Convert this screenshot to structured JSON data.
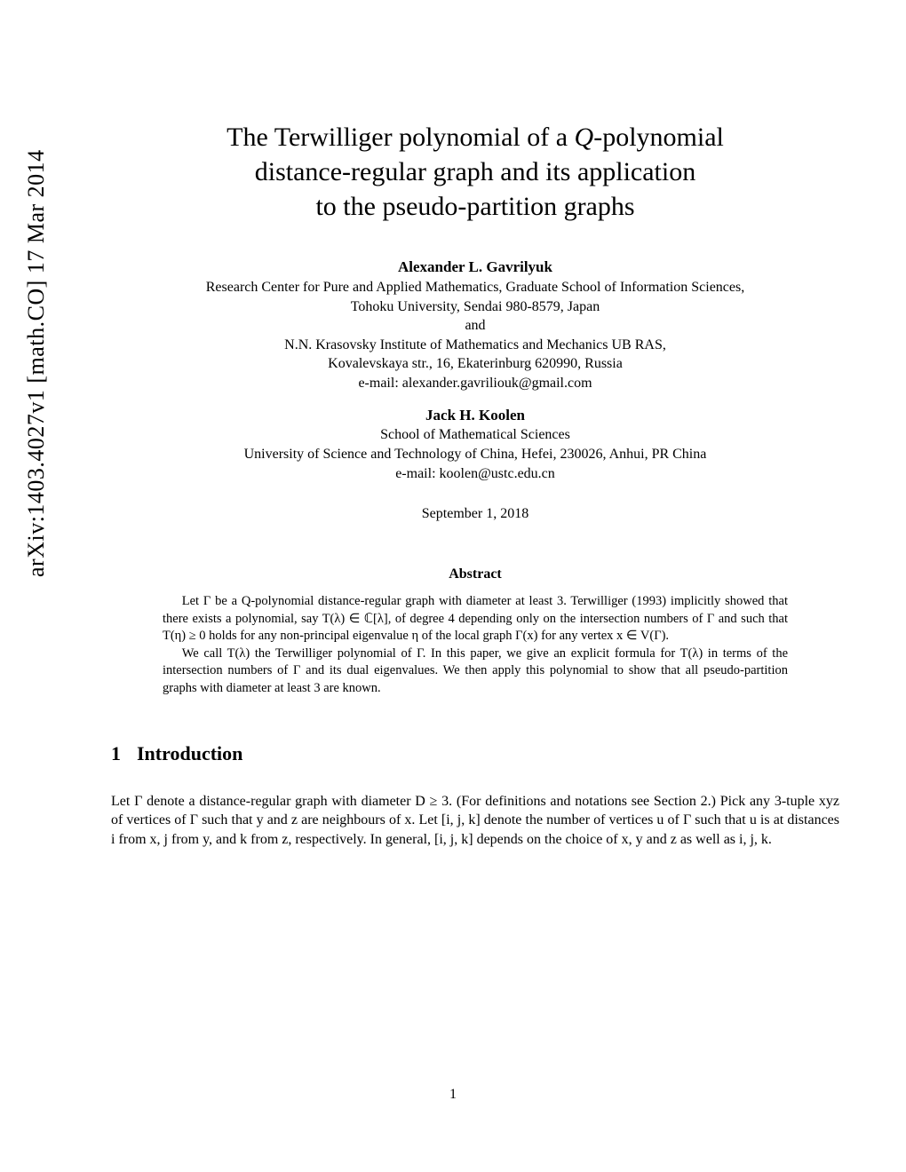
{
  "arxiv_id": "arXiv:1403.4027v1  [math.CO]  17 Mar 2014",
  "title_line1": "The Terwilliger polynomial of a ",
  "title_q": "Q",
  "title_line1b": "-polynomial",
  "title_line2": "distance-regular graph and its application",
  "title_line3": "to the pseudo-partition graphs",
  "author1": {
    "name": "Alexander L. Gavrilyuk",
    "affil1": "Research Center for Pure and Applied Mathematics, Graduate School of Information Sciences,",
    "affil2": "Tohoku University, Sendai 980-8579, Japan",
    "and": "and",
    "affil3": "N.N. Krasovsky Institute of Mathematics and Mechanics UB RAS,",
    "affil4": "Kovalevskaya str., 16, Ekaterinburg 620990, Russia",
    "email": "e-mail: alexander.gavriliouk@gmail.com"
  },
  "author2": {
    "name": "Jack H. Koolen",
    "affil1": "School of Mathematical Sciences",
    "affil2": "University of Science and Technology of China, Hefei, 230026, Anhui, PR China",
    "email": "e-mail: koolen@ustc.edu.cn"
  },
  "date": "September 1, 2018",
  "abstract_heading": "Abstract",
  "abstract_p1": "Let Γ be a Q-polynomial distance-regular graph with diameter at least 3. Terwilliger (1993) implicitly showed that there exists a polynomial, say T(λ) ∈ ℂ[λ], of degree 4 depending only on the intersection numbers of Γ and such that T(η) ≥ 0 holds for any non-principal eigenvalue η of the local graph Γ(x) for any vertex x ∈ V(Γ).",
  "abstract_p2": "We call T(λ) the Terwilliger polynomial of Γ. In this paper, we give an explicit formula for T(λ) in terms of the intersection numbers of Γ and its dual eigenvalues. We then apply this polynomial to show that all pseudo-partition graphs with diameter at least 3 are known.",
  "section1_number": "1",
  "section1_title": "Introduction",
  "intro_p1": "Let Γ denote a distance-regular graph with diameter D ≥ 3. (For definitions and notations see Section 2.) Pick any 3-tuple xyz of vertices of Γ such that y and z are neighbours of x. Let [i, j, k] denote the number of vertices u of Γ such that u is at distances i from x, j from y, and k from z, respectively. In general, [i, j, k] depends on the choice of x, y and z as well as i, j, k.",
  "page_number": "1"
}
